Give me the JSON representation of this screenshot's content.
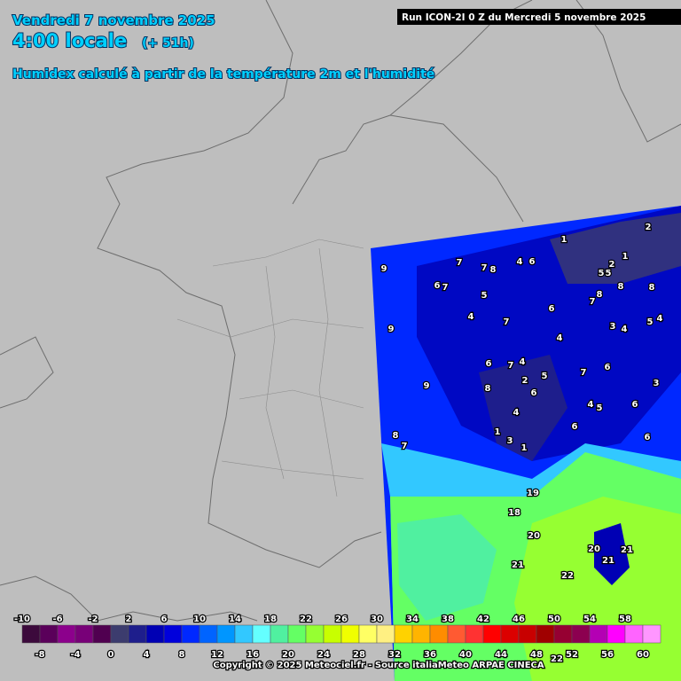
{
  "header": {
    "date": "Vendredi 7 novembre 2025",
    "time": "4:00 locale",
    "offset": "(+ 51h)",
    "subtitle": "Humidex calculé à partir de la température 2m et l'humidité"
  },
  "run_label": "Run ICON-2I 0 Z du Mercredi 5 novembre 2025",
  "copyright": "Copyright © 2025 Meteociel.fr - Source italiaMeteo ARPAE CINECA",
  "legend": {
    "top_labels": [
      -10,
      -6,
      -2,
      2,
      6,
      10,
      14,
      18,
      22,
      26,
      30,
      34,
      38,
      42,
      46,
      50,
      54,
      58
    ],
    "bottom_labels": [
      -8,
      -4,
      0,
      4,
      8,
      12,
      16,
      20,
      24,
      28,
      32,
      36,
      40,
      44,
      48,
      52,
      56,
      60
    ],
    "colors": [
      "#3c0a3c",
      "#5a005a",
      "#8c008c",
      "#780078",
      "#500050",
      "#3c3c6e",
      "#1e1e8c",
      "#0000b4",
      "#0000dc",
      "#0028ff",
      "#0064ff",
      "#0096ff",
      "#32c8ff",
      "#64ffff",
      "#50f0a0",
      "#64ff64",
      "#96ff32",
      "#c8ff00",
      "#f0ff00",
      "#ffff64",
      "#fff082",
      "#ffd200",
      "#ffb400",
      "#ff8c00",
      "#ff5a32",
      "#ff3232",
      "#ff0000",
      "#dc0000",
      "#c80000",
      "#a00000",
      "#960032",
      "#8c0050",
      "#b400b4",
      "#ff00ff",
      "#ff64ff",
      "#ff96ff"
    ]
  },
  "map_labels": [
    9,
    7,
    7,
    8,
    4,
    6,
    1,
    2,
    1,
    2,
    5,
    5,
    6,
    7,
    5,
    8,
    8,
    7,
    8,
    4,
    7,
    6,
    9,
    3,
    4,
    5,
    4,
    4,
    6,
    7,
    4,
    2,
    5,
    7,
    6,
    9,
    8,
    6,
    3,
    4,
    4,
    5,
    6,
    8,
    7,
    1,
    3,
    1,
    6,
    6,
    19,
    18,
    20,
    20,
    21,
    21,
    21,
    22,
    22
  ]
}
